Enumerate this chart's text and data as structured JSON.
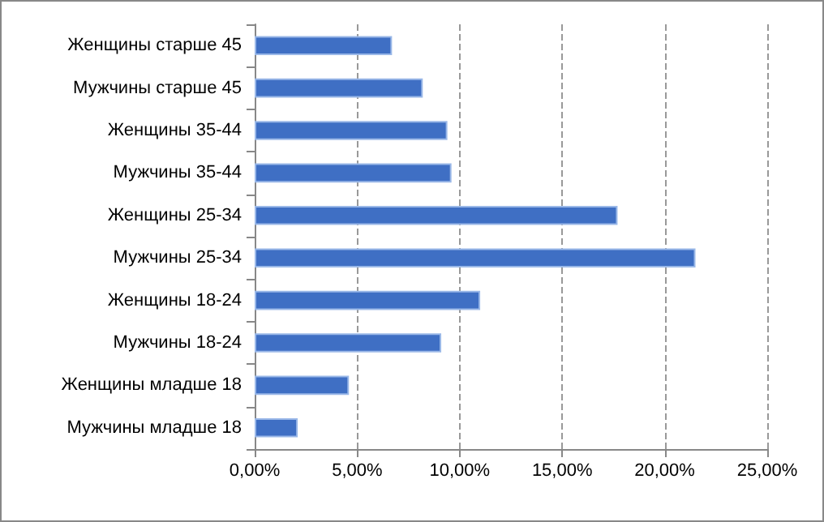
{
  "chart_data": {
    "type": "bar",
    "orientation": "horizontal",
    "categories": [
      "Женщины старше 45",
      "Мужчины старше 45",
      "Женщины 35-44",
      "Мужчины 35-44",
      "Женщины 25-34",
      "Мужчины 25-34",
      "Женщины 18-24",
      "Мужчины 18-24",
      "Женщины младше 18",
      "Мужчины младше 18"
    ],
    "values": [
      6.7,
      8.2,
      9.4,
      9.6,
      17.7,
      21.5,
      11.0,
      9.1,
      4.6,
      2.1
    ],
    "color": "#3f6fc4",
    "xlim": [
      0,
      25
    ],
    "xticks": [
      {
        "value": 0,
        "label": "0,00%"
      },
      {
        "value": 5,
        "label": "5,00%"
      },
      {
        "value": 10,
        "label": "10,00%"
      },
      {
        "value": 15,
        "label": "15,00%"
      },
      {
        "value": 20,
        "label": "20,00%"
      },
      {
        "value": 25,
        "label": "25,00%"
      }
    ],
    "grid": "x"
  }
}
